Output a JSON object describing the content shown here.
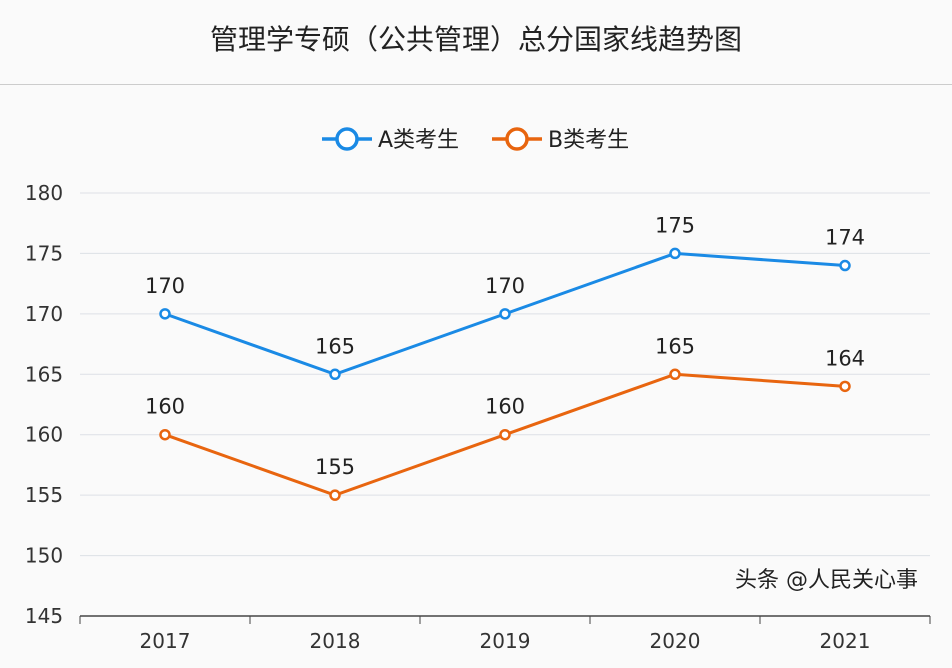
{
  "chart_data": {
    "type": "line",
    "title": "管理学专硕（公共管理）总分国家线趋势图",
    "categories": [
      "2017",
      "2018",
      "2019",
      "2020",
      "2021"
    ],
    "series": [
      {
        "name": "A类考生",
        "values": [
          170,
          165,
          170,
          175,
          174
        ],
        "color": "#1a8ae5"
      },
      {
        "name": "B类考生",
        "values": [
          160,
          155,
          160,
          165,
          164
        ],
        "color": "#e8650f"
      }
    ],
    "ylim": [
      145,
      180
    ],
    "yticks": [
      145,
      150,
      155,
      160,
      165,
      170,
      175,
      180
    ],
    "grid": true,
    "legend": "top"
  },
  "watermark": "头条 @人民关心事"
}
